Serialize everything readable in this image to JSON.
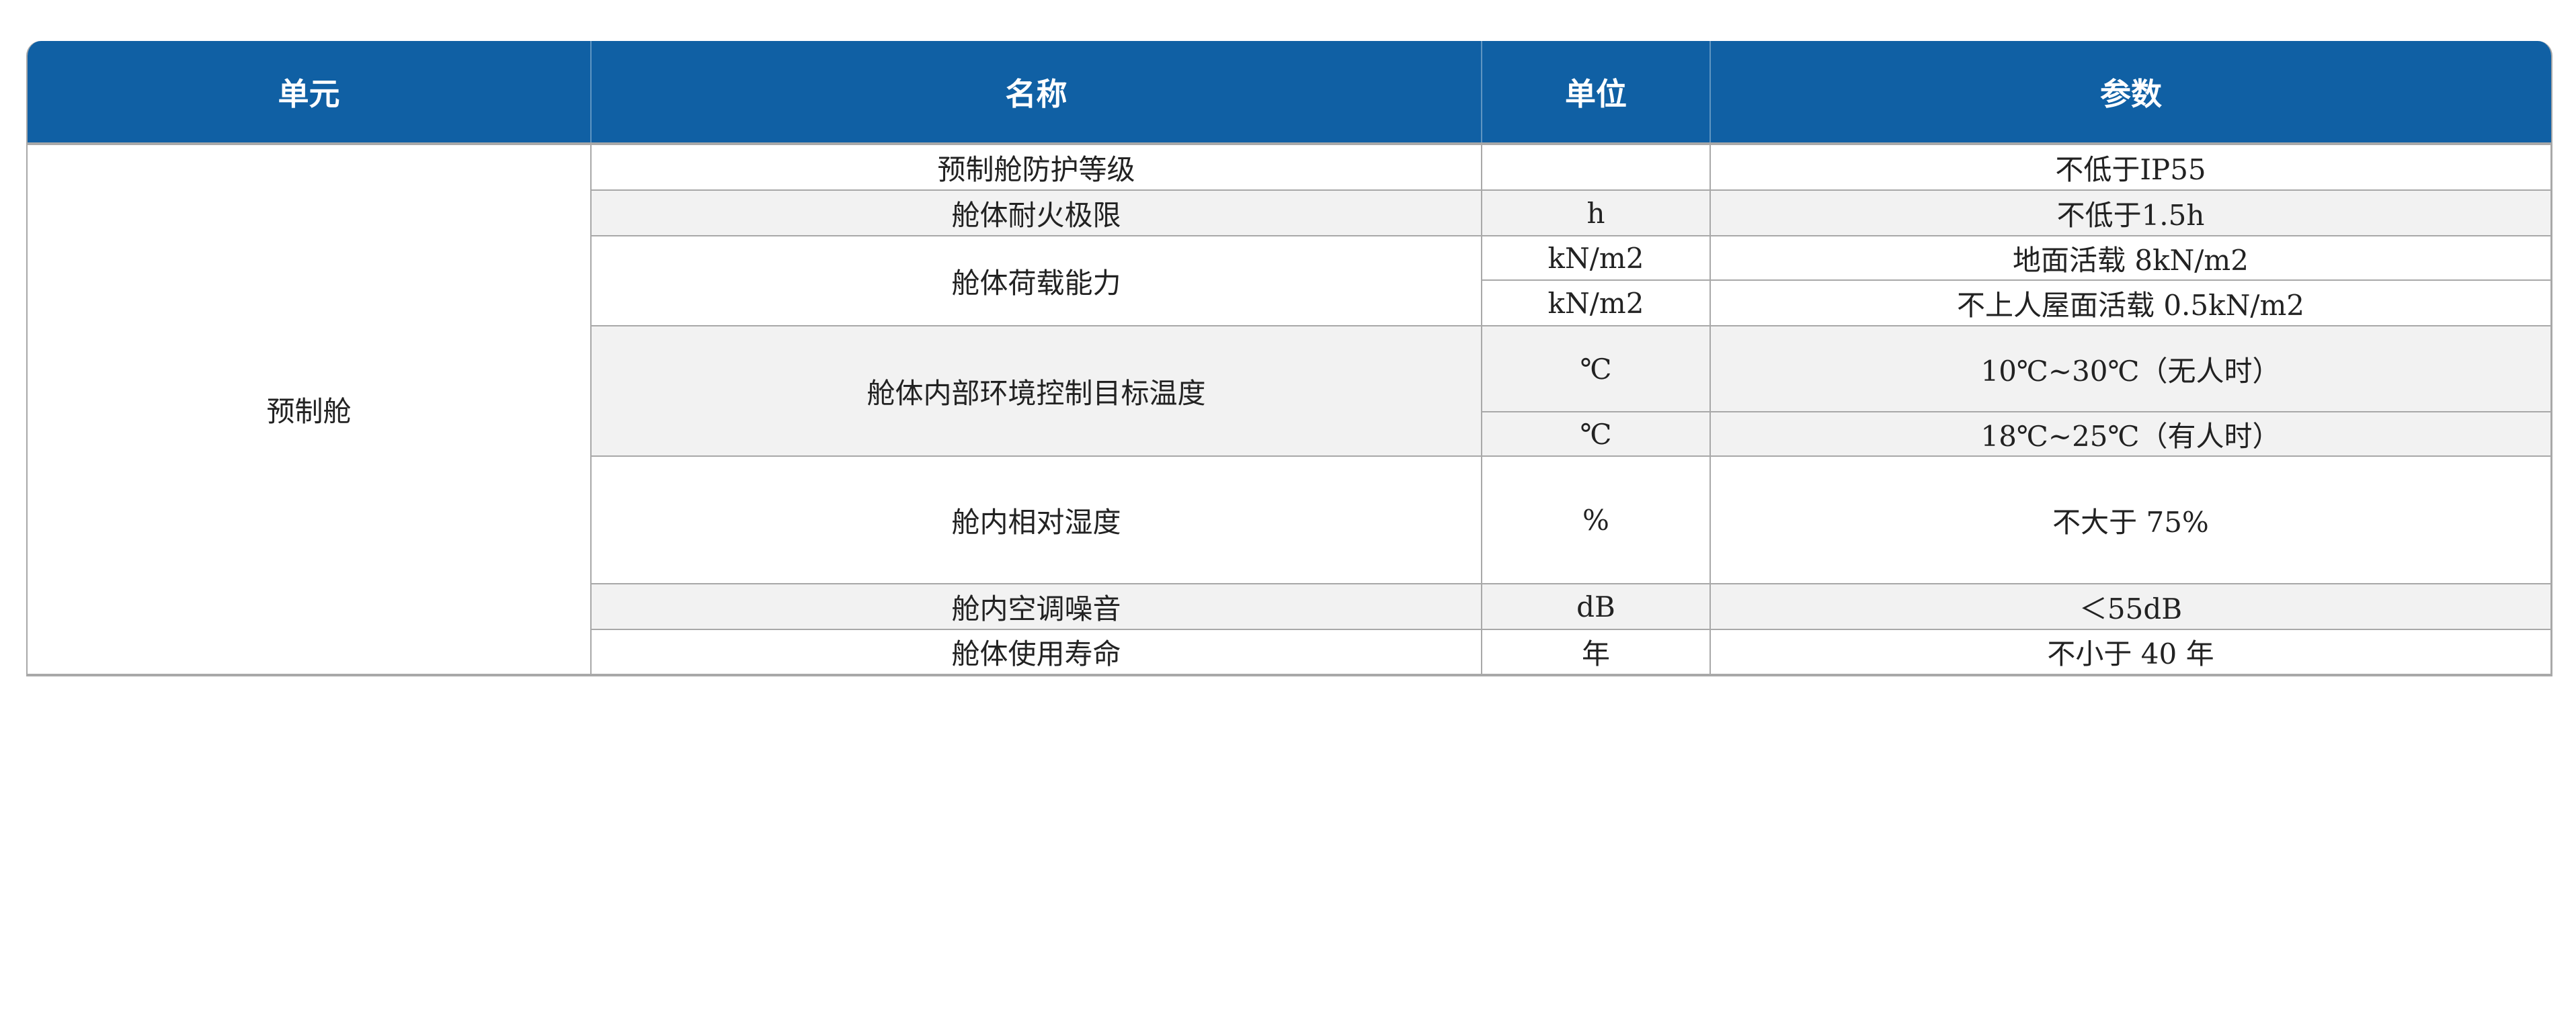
{
  "headers": [
    "单元",
    "名称",
    "单位",
    "参数"
  ],
  "unit": "预制舱",
  "rows": [
    {
      "name": "预制舱防护等级",
      "unit": "",
      "param": "不低于IP55"
    },
    {
      "name": "舱体耐火极限",
      "unit": "h",
      "param": "不低于1.5h"
    },
    {
      "name": "舱体荷载能力",
      "unit": "kN/m2",
      "param": "地面活载 8kN/m2"
    },
    {
      "name": "",
      "unit": "kN/m2",
      "param": "不上人屋面活载 0.5kN/m2"
    },
    {
      "name": "舱体内部环境控制目标温度",
      "unit": "℃",
      "param": "10℃~30℃（无人时）"
    },
    {
      "name": "",
      "unit": "℃",
      "param": "18℃~25℃（有人时）"
    },
    {
      "name": "舱内相对湿度",
      "unit": "%",
      "param": "不大于 75%"
    },
    {
      "name": "舱内空调噪音",
      "unit": "dB",
      "param": "＜55dB"
    },
    {
      "name": "舱体使用寿命",
      "unit": "年",
      "param": "不小于 40 年"
    }
  ],
  "colors": {
    "header": "#1060a4",
    "alt_row": "#f2f2f2",
    "border": "#a8a8a8"
  }
}
